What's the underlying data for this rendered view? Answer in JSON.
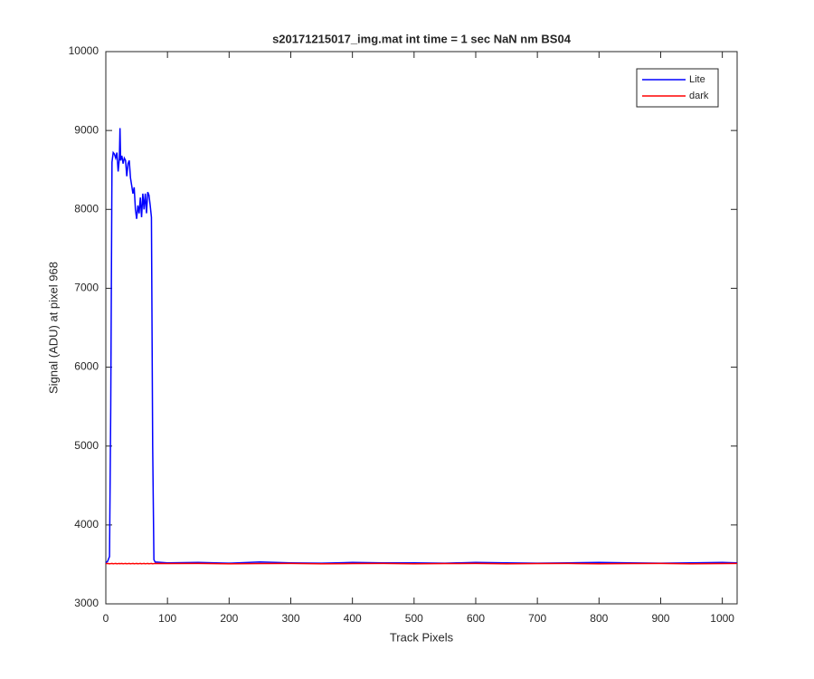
{
  "chart_data": {
    "type": "line",
    "title": "s20171215017_img.mat int time = 1 sec  NaN nm BS04",
    "x_label": "Track Pixels",
    "y_label": "Signal (ADU) at pixel 968",
    "x": [
      0,
      3,
      6,
      8,
      10,
      12,
      14,
      16,
      18,
      20,
      22,
      23,
      24,
      26,
      28,
      30,
      32,
      34,
      36,
      38,
      40,
      42,
      44,
      46,
      48,
      50,
      52,
      54,
      56,
      58,
      60,
      62,
      64,
      66,
      68,
      70,
      72,
      74,
      76,
      78,
      80,
      100,
      150,
      200,
      250,
      300,
      350,
      400,
      450,
      500,
      550,
      600,
      650,
      700,
      750,
      800,
      850,
      900,
      950,
      1000,
      1024
    ],
    "series": [
      {
        "name": "Lite",
        "color": "#0000ff",
        "values": [
          3520,
          3540,
          3600,
          5500,
          8600,
          8720,
          8700,
          8650,
          8720,
          8480,
          8650,
          9030,
          8620,
          8680,
          8580,
          8650,
          8620,
          8420,
          8580,
          8620,
          8400,
          8300,
          8200,
          8280,
          8000,
          7880,
          8050,
          7950,
          8150,
          7900,
          8200,
          8000,
          8200,
          7950,
          8220,
          8180,
          8050,
          7900,
          5000,
          3560,
          3530,
          3520,
          3525,
          3515,
          3530,
          3520,
          3515,
          3525,
          3520,
          3520,
          3515,
          3525,
          3520,
          3515,
          3520,
          3525,
          3520,
          3515,
          3520,
          3525,
          3520
        ]
      },
      {
        "name": "dark",
        "color": "#ff0000",
        "values": [
          3510,
          3512,
          3508,
          3510,
          3512,
          3508,
          3510,
          3512,
          3508,
          3510,
          3512,
          3508,
          3510,
          3512,
          3508,
          3510,
          3512,
          3508,
          3510,
          3512,
          3508,
          3510,
          3512,
          3508,
          3510,
          3512,
          3508,
          3510,
          3512,
          3508,
          3510,
          3512,
          3508,
          3510,
          3512,
          3508,
          3510,
          3512,
          3508,
          3510,
          3512,
          3510,
          3512,
          3508,
          3510,
          3512,
          3508,
          3510,
          3512,
          3508,
          3510,
          3512,
          3508,
          3510,
          3512,
          3508,
          3510,
          3512,
          3508,
          3510,
          3512
        ]
      }
    ],
    "xlim": [
      0,
      1024
    ],
    "ylim": [
      3000,
      10000
    ],
    "xticks": [
      0,
      100,
      200,
      300,
      400,
      500,
      600,
      700,
      800,
      900,
      1000
    ],
    "yticks": [
      3000,
      4000,
      5000,
      6000,
      7000,
      8000,
      9000,
      10000
    ],
    "grid": false,
    "legend": "top-right"
  }
}
